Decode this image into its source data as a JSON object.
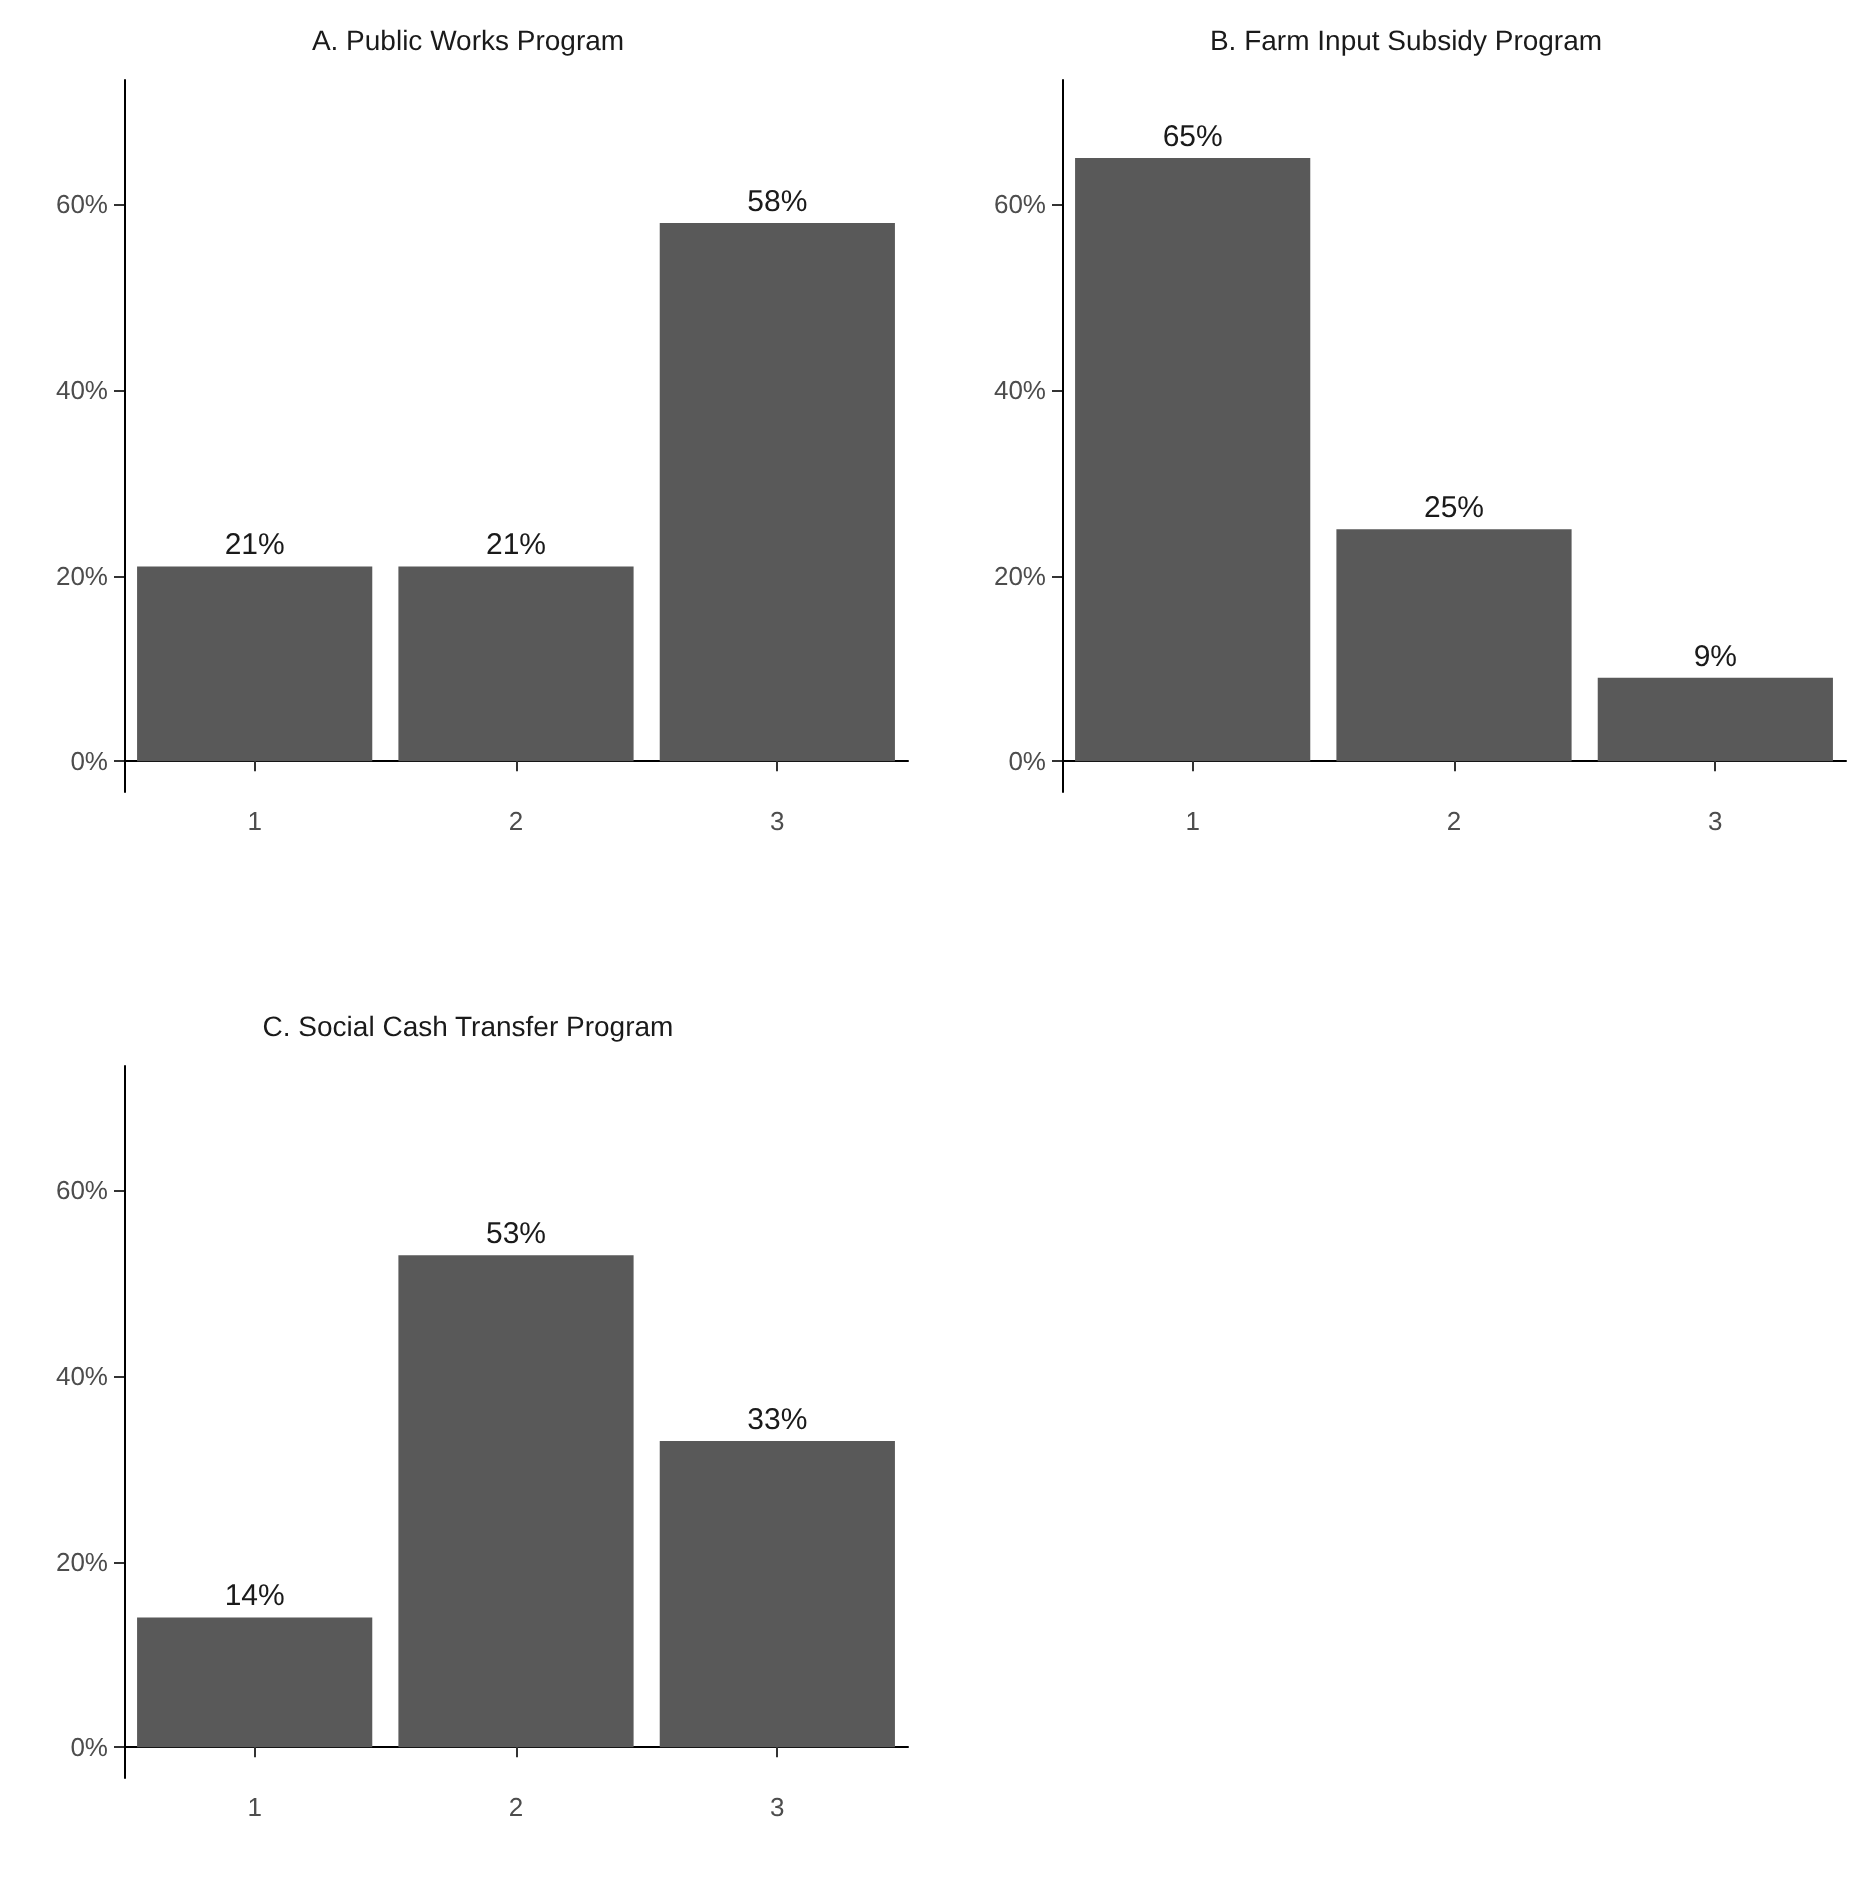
{
  "chart_data": [
    {
      "type": "bar",
      "title": "A. Public Works Program",
      "categories": [
        "1",
        "2",
        "3"
      ],
      "values": [
        21,
        21,
        58
      ],
      "color": "#595959",
      "value_labels": [
        "21%",
        "21%",
        "58%"
      ],
      "ylim": [
        -3.3,
        73.4
      ],
      "yticks": [
        {
          "value": 0,
          "label": "0%"
        },
        {
          "value": 20,
          "label": "20%"
        },
        {
          "value": 40,
          "label": "40%"
        },
        {
          "value": 60,
          "label": "60%"
        }
      ],
      "grid": false
    },
    {
      "type": "bar",
      "title": "B. Farm Input Subsidy Program",
      "categories": [
        "1",
        "2",
        "3"
      ],
      "values": [
        65,
        25,
        9
      ],
      "color": "#595959",
      "value_labels": [
        "65%",
        "25%",
        "9%"
      ],
      "ylim": [
        -3.3,
        73.4
      ],
      "yticks": [
        {
          "value": 0,
          "label": "0%"
        },
        {
          "value": 20,
          "label": "20%"
        },
        {
          "value": 40,
          "label": "40%"
        },
        {
          "value": 60,
          "label": "60%"
        }
      ],
      "grid": false
    },
    {
      "type": "bar",
      "title": "C. Social Cash Transfer Program",
      "categories": [
        "1",
        "2",
        "3"
      ],
      "values": [
        14,
        53,
        33
      ],
      "color": "#595959",
      "value_labels": [
        "14%",
        "53%",
        "33%"
      ],
      "ylim": [
        -3.3,
        73.4
      ],
      "yticks": [
        {
          "value": 0,
          "label": "0%"
        },
        {
          "value": 20,
          "label": "20%"
        },
        {
          "value": 40,
          "label": "40%"
        },
        {
          "value": 60,
          "label": "60%"
        }
      ],
      "grid": false
    }
  ]
}
